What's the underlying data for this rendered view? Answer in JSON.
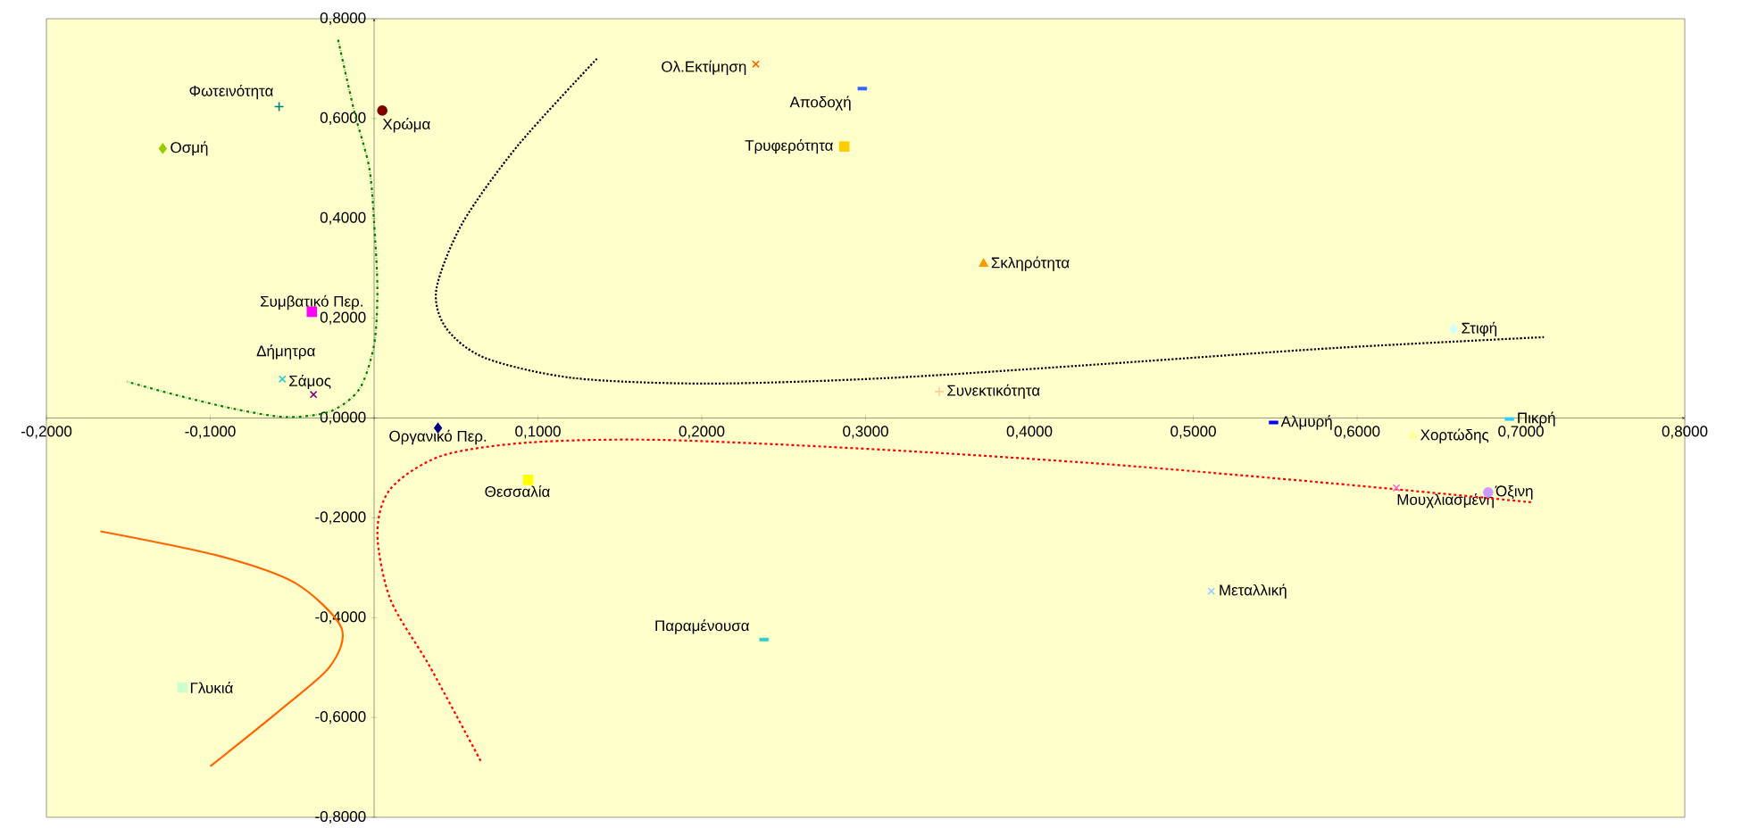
{
  "chart_data": {
    "type": "scatter",
    "xlim": [
      -0.2,
      0.8
    ],
    "ylim": [
      -0.8,
      0.8
    ],
    "xticks": [
      {
        "value": -0.2,
        "label": "-0,2000"
      },
      {
        "value": -0.1,
        "label": "-0,1000"
      },
      {
        "value": 0,
        "label": null
      },
      {
        "value": 0.1,
        "label": "0,1000"
      },
      {
        "value": 0.2,
        "label": "0,2000"
      },
      {
        "value": 0.3,
        "label": "0,3000"
      },
      {
        "value": 0.4,
        "label": "0,4000"
      },
      {
        "value": 0.5,
        "label": "0,5000"
      },
      {
        "value": 0.6,
        "label": "0,6000"
      },
      {
        "value": 0.7,
        "label": "0,7000"
      },
      {
        "value": 0.8,
        "label": "0,8000"
      }
    ],
    "yticks": [
      {
        "value": -0.8,
        "label": "-0,8000"
      },
      {
        "value": -0.6,
        "label": "-0,6000"
      },
      {
        "value": -0.4,
        "label": "-0,4000"
      },
      {
        "value": -0.2,
        "label": "-0,2000"
      },
      {
        "value": 0,
        "label": "0,0000"
      },
      {
        "value": 0.2,
        "label": "0,2000"
      },
      {
        "value": 0.4,
        "label": "0,4000"
      },
      {
        "value": 0.6,
        "label": "0,6000"
      },
      {
        "value": 0.8,
        "label": "0,8000"
      }
    ],
    "series": [
      {
        "name": "Φωτεινότητα",
        "color": "#008080",
        "marker": "plus",
        "x": [
          -0.058
        ],
        "values": [
          0.624
        ]
      },
      {
        "name": "Οσμή",
        "color": "#99cc00",
        "marker": "diamond",
        "x": [
          -0.129
        ],
        "values": [
          0.54
        ]
      },
      {
        "name": "Χρώμα",
        "color": "#800000",
        "marker": "circle",
        "x": [
          0.005
        ],
        "values": [
          0.616
        ]
      },
      {
        "name": "Ολ.Εκτίμηση",
        "color": "#ff6600",
        "marker": "cross",
        "x": [
          0.233
        ],
        "values": [
          0.709
        ]
      },
      {
        "name": "Αποδοχή",
        "color": "#3366ff",
        "marker": "square",
        "x": [
          0.298
        ],
        "values": [
          0.66
        ]
      },
      {
        "name": "Τρυφερότητα",
        "color": "#ffcc00",
        "marker": "square",
        "x": [
          0.287
        ],
        "values": [
          0.544
        ]
      },
      {
        "name": "Σκληρότητα",
        "color": "#ff9900",
        "marker": "triangle",
        "x": [
          0.372
        ],
        "values": [
          0.309
        ]
      },
      {
        "name": "Συμβατικό Περ.",
        "color": "#ff00ff",
        "marker": "square",
        "x": [
          -0.038
        ],
        "values": [
          0.213
        ]
      },
      {
        "name": "Στιφή",
        "color": "#ccffff",
        "marker": "diamond",
        "x": [
          0.659
        ],
        "values": [
          0.178
        ]
      },
      {
        "name": "Δήμητρα",
        "color": "#33cccc",
        "marker": "cross",
        "x": [
          -0.056
        ],
        "values": [
          0.078
        ]
      },
      {
        "name": "Σάμος",
        "color": "#800080",
        "marker": "cross",
        "x": [
          -0.037
        ],
        "values": [
          0.047
        ]
      },
      {
        "name": "Συνεκτικότητα",
        "color": "#ffcc99",
        "marker": "plus",
        "x": [
          0.345
        ],
        "values": [
          0.053
        ]
      },
      {
        "name": "Αλμυρή",
        "color": "#0000ff",
        "marker": "square",
        "x": [
          0.549
        ],
        "values": [
          -0.009
        ]
      },
      {
        "name": "Πικρή",
        "color": "#33ccff",
        "marker": "square",
        "x": [
          0.693
        ],
        "values": [
          -0.002
        ]
      },
      {
        "name": "Χορτώδης",
        "color": "#ffff99",
        "marker": "triangle",
        "x": [
          0.634
        ],
        "values": [
          -0.036
        ]
      },
      {
        "name": "Οργανικό Περ.",
        "color": "#000080",
        "marker": "diamond",
        "x": [
          0.039
        ],
        "values": [
          -0.02
        ]
      },
      {
        "name": "Θεσσαλία",
        "color": "#ffff00",
        "marker": "square",
        "x": [
          0.094
        ],
        "values": [
          -0.124
        ]
      },
      {
        "name": "Μουχλιασμένη",
        "color": "#ff66cc",
        "marker": "cross",
        "x": [
          0.624
        ],
        "values": [
          -0.14
        ]
      },
      {
        "name": "Όξινη",
        "color": "#cc99ff",
        "marker": "circle",
        "x": [
          0.68
        ],
        "values": [
          -0.149
        ]
      },
      {
        "name": "Μεταλλική",
        "color": "#99ccff",
        "marker": "cross",
        "x": [
          0.511
        ],
        "values": [
          -0.347
        ]
      },
      {
        "name": "Παραμένουσα",
        "color": "#33cccc",
        "marker": "square",
        "x": [
          0.238
        ],
        "values": [
          -0.444
        ]
      },
      {
        "name": "Γλυκιά",
        "color": "#ccffcc",
        "marker": "square",
        "x": [
          -0.117
        ],
        "values": [
          -0.54
        ]
      },
      {
        "type": "line",
        "color": "#008000",
        "line_style": "dashdot",
        "x": [
          -0.022,
          -0.012,
          -0.003,
          0.0,
          0.002,
          0.0,
          -0.009,
          -0.027,
          -0.054,
          -0.085,
          -0.122,
          -0.151
        ],
        "values": [
          0.758,
          0.613,
          0.502,
          0.391,
          0.258,
          0.147,
          0.058,
          0.013,
          0.002,
          0.018,
          0.047,
          0.073
        ]
      },
      {
        "type": "line",
        "color": "#000000",
        "line_style": "dotted",
        "x": [
          0.136,
          0.088,
          0.054,
          0.038,
          0.044,
          0.068,
          0.122,
          0.204,
          0.313,
          0.449,
          0.585,
          0.714
        ],
        "values": [
          0.72,
          0.547,
          0.391,
          0.258,
          0.18,
          0.12,
          0.08,
          0.069,
          0.08,
          0.109,
          0.14,
          0.162
        ]
      },
      {
        "type": "line",
        "color": "#ff0000",
        "line_style": "dashed",
        "x": [
          0.065,
          0.034,
          0.01,
          0.002,
          0.01,
          0.041,
          0.095,
          0.177,
          0.313,
          0.449,
          0.585,
          0.707
        ],
        "values": [
          -0.687,
          -0.498,
          -0.364,
          -0.231,
          -0.142,
          -0.076,
          -0.049,
          -0.044,
          -0.064,
          -0.093,
          -0.131,
          -0.169
        ]
      },
      {
        "type": "line",
        "color": "#ff6600",
        "line_style": "solid",
        "x": [
          -0.167,
          -0.095,
          -0.048,
          -0.02,
          -0.027,
          -0.058,
          -0.1
        ],
        "values": [
          -0.227,
          -0.276,
          -0.331,
          -0.42,
          -0.498,
          -0.587,
          -0.698
        ]
      }
    ]
  }
}
